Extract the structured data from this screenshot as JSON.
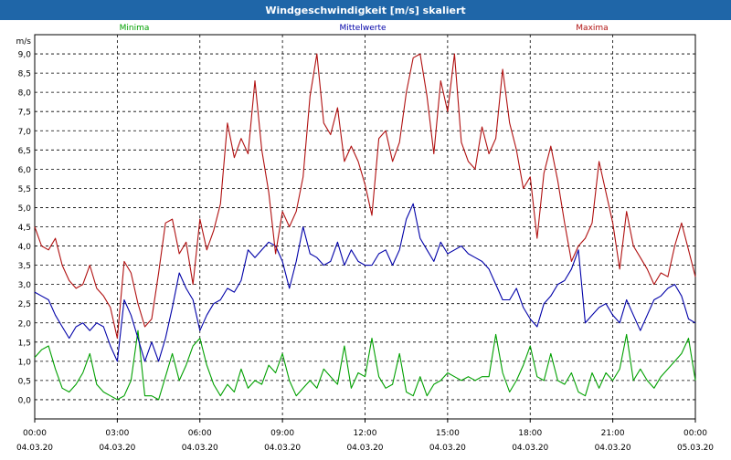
{
  "window": {
    "title": "Windgeschwindigkeit [m/s] skaliert"
  },
  "chart_data": {
    "type": "line",
    "title": "Windgeschwindigkeit [m/s] skaliert",
    "ylabel": "m/s",
    "ylim": [
      -0.5,
      9.5
    ],
    "xlim": [
      0,
      24
    ],
    "grid": true,
    "legend_placement": "top",
    "y_ticks": [
      "0,0",
      "0,5",
      "1,0",
      "1,5",
      "2,0",
      "2,5",
      "3,0",
      "3,5",
      "4,0",
      "4,5",
      "5,0",
      "5,5",
      "6,0",
      "6,5",
      "7,0",
      "7,5",
      "8,0",
      "8,5",
      "9,0"
    ],
    "x_ticks": [
      {
        "time": "00:00",
        "date": "04.03.20"
      },
      {
        "time": "03:00",
        "date": "04.03.20"
      },
      {
        "time": "06:00",
        "date": "04.03.20"
      },
      {
        "time": "09:00",
        "date": "04.03.20"
      },
      {
        "time": "12:00",
        "date": "04.03.20"
      },
      {
        "time": "15:00",
        "date": "04.03.20"
      },
      {
        "time": "18:00",
        "date": "04.03.20"
      },
      {
        "time": "21:00",
        "date": "04.03.20"
      },
      {
        "time": "00:00",
        "date": "05.03.20"
      }
    ],
    "series": [
      {
        "name": "Minima",
        "color": "#00a000",
        "points": [
          [
            0,
            1.1
          ],
          [
            0.25,
            1.3
          ],
          [
            0.5,
            1.4
          ],
          [
            0.75,
            0.8
          ],
          [
            1,
            0.3
          ],
          [
            1.25,
            0.2
          ],
          [
            1.5,
            0.4
          ],
          [
            1.75,
            0.7
          ],
          [
            2,
            1.2
          ],
          [
            2.25,
            0.4
          ],
          [
            2.5,
            0.2
          ],
          [
            2.75,
            0.1
          ],
          [
            3,
            0.0
          ],
          [
            3.25,
            0.1
          ],
          [
            3.5,
            0.5
          ],
          [
            3.75,
            1.8
          ],
          [
            4,
            0.1
          ],
          [
            4.25,
            0.1
          ],
          [
            4.5,
            0.0
          ],
          [
            4.75,
            0.6
          ],
          [
            5,
            1.2
          ],
          [
            5.25,
            0.5
          ],
          [
            5.5,
            0.9
          ],
          [
            5.75,
            1.4
          ],
          [
            6,
            1.6
          ],
          [
            6.25,
            0.9
          ],
          [
            6.5,
            0.4
          ],
          [
            6.75,
            0.1
          ],
          [
            7,
            0.4
          ],
          [
            7.25,
            0.2
          ],
          [
            7.5,
            0.8
          ],
          [
            7.75,
            0.3
          ],
          [
            8,
            0.5
          ],
          [
            8.25,
            0.4
          ],
          [
            8.5,
            0.9
          ],
          [
            8.75,
            0.7
          ],
          [
            9,
            1.2
          ],
          [
            9.25,
            0.5
          ],
          [
            9.5,
            0.1
          ],
          [
            9.75,
            0.3
          ],
          [
            10,
            0.5
          ],
          [
            10.25,
            0.3
          ],
          [
            10.5,
            0.8
          ],
          [
            10.75,
            0.6
          ],
          [
            11,
            0.4
          ],
          [
            11.25,
            1.4
          ],
          [
            11.5,
            0.3
          ],
          [
            11.75,
            0.7
          ],
          [
            12,
            0.6
          ],
          [
            12.25,
            1.6
          ],
          [
            12.5,
            0.6
          ],
          [
            12.75,
            0.3
          ],
          [
            13,
            0.4
          ],
          [
            13.25,
            1.2
          ],
          [
            13.5,
            0.2
          ],
          [
            13.75,
            0.1
          ],
          [
            14,
            0.6
          ],
          [
            14.25,
            0.1
          ],
          [
            14.5,
            0.4
          ],
          [
            14.75,
            0.5
          ],
          [
            15,
            0.7
          ],
          [
            15.25,
            0.6
          ],
          [
            15.5,
            0.5
          ],
          [
            15.75,
            0.6
          ],
          [
            16,
            0.5
          ],
          [
            16.25,
            0.6
          ],
          [
            16.5,
            0.6
          ],
          [
            16.75,
            1.7
          ],
          [
            17,
            0.7
          ],
          [
            17.25,
            0.2
          ],
          [
            17.5,
            0.5
          ],
          [
            17.75,
            0.9
          ],
          [
            18,
            1.4
          ],
          [
            18.25,
            0.6
          ],
          [
            18.5,
            0.5
          ],
          [
            18.75,
            1.2
          ],
          [
            19,
            0.5
          ],
          [
            19.25,
            0.4
          ],
          [
            19.5,
            0.7
          ],
          [
            19.75,
            0.2
          ],
          [
            20,
            0.1
          ],
          [
            20.25,
            0.7
          ],
          [
            20.5,
            0.3
          ],
          [
            20.75,
            0.7
          ],
          [
            21,
            0.5
          ],
          [
            21.25,
            0.8
          ],
          [
            21.5,
            1.7
          ],
          [
            21.75,
            0.5
          ],
          [
            22,
            0.8
          ],
          [
            22.25,
            0.5
          ],
          [
            22.5,
            0.3
          ],
          [
            22.75,
            0.6
          ],
          [
            23,
            0.8
          ],
          [
            23.25,
            1.0
          ],
          [
            23.5,
            1.2
          ],
          [
            23.75,
            1.6
          ],
          [
            24,
            0.5
          ]
        ]
      },
      {
        "name": "Mittelwerte",
        "color": "#0000a8",
        "points": [
          [
            0,
            2.8
          ],
          [
            0.25,
            2.7
          ],
          [
            0.5,
            2.6
          ],
          [
            0.75,
            2.2
          ],
          [
            1,
            1.9
          ],
          [
            1.25,
            1.6
          ],
          [
            1.5,
            1.9
          ],
          [
            1.75,
            2.0
          ],
          [
            2,
            1.8
          ],
          [
            2.25,
            2.0
          ],
          [
            2.5,
            1.9
          ],
          [
            2.75,
            1.4
          ],
          [
            3,
            1.0
          ],
          [
            3.25,
            2.6
          ],
          [
            3.5,
            2.2
          ],
          [
            3.75,
            1.6
          ],
          [
            4,
            1.0
          ],
          [
            4.25,
            1.5
          ],
          [
            4.5,
            1.0
          ],
          [
            4.75,
            1.6
          ],
          [
            5,
            2.4
          ],
          [
            5.25,
            3.3
          ],
          [
            5.5,
            2.9
          ],
          [
            5.75,
            2.6
          ],
          [
            6,
            1.8
          ],
          [
            6.25,
            2.2
          ],
          [
            6.5,
            2.5
          ],
          [
            6.75,
            2.6
          ],
          [
            7,
            2.9
          ],
          [
            7.25,
            2.8
          ],
          [
            7.5,
            3.1
          ],
          [
            7.75,
            3.9
          ],
          [
            8,
            3.7
          ],
          [
            8.25,
            3.9
          ],
          [
            8.5,
            4.1
          ],
          [
            8.75,
            4.0
          ],
          [
            9,
            3.6
          ],
          [
            9.25,
            2.9
          ],
          [
            9.5,
            3.6
          ],
          [
            9.75,
            4.5
          ],
          [
            10,
            3.8
          ],
          [
            10.25,
            3.7
          ],
          [
            10.5,
            3.5
          ],
          [
            10.75,
            3.6
          ],
          [
            11,
            4.1
          ],
          [
            11.25,
            3.5
          ],
          [
            11.5,
            3.9
          ],
          [
            11.75,
            3.6
          ],
          [
            12,
            3.5
          ],
          [
            12.25,
            3.5
          ],
          [
            12.5,
            3.8
          ],
          [
            12.75,
            3.9
          ],
          [
            13,
            3.5
          ],
          [
            13.25,
            3.9
          ],
          [
            13.5,
            4.7
          ],
          [
            13.75,
            5.1
          ],
          [
            14,
            4.2
          ],
          [
            14.25,
            3.9
          ],
          [
            14.5,
            3.6
          ],
          [
            14.75,
            4.1
          ],
          [
            15,
            3.8
          ],
          [
            15.25,
            3.9
          ],
          [
            15.5,
            4.0
          ],
          [
            15.75,
            3.8
          ],
          [
            16,
            3.7
          ],
          [
            16.25,
            3.6
          ],
          [
            16.5,
            3.4
          ],
          [
            16.75,
            3.0
          ],
          [
            17,
            2.6
          ],
          [
            17.25,
            2.6
          ],
          [
            17.5,
            2.9
          ],
          [
            17.75,
            2.4
          ],
          [
            18,
            2.1
          ],
          [
            18.25,
            1.9
          ],
          [
            18.5,
            2.5
          ],
          [
            18.75,
            2.7
          ],
          [
            19,
            3.0
          ],
          [
            19.25,
            3.1
          ],
          [
            19.5,
            3.4
          ],
          [
            19.75,
            3.9
          ],
          [
            20,
            2.0
          ],
          [
            20.25,
            2.2
          ],
          [
            20.5,
            2.4
          ],
          [
            20.75,
            2.5
          ],
          [
            21,
            2.2
          ],
          [
            21.25,
            2.0
          ],
          [
            21.5,
            2.6
          ],
          [
            21.75,
            2.2
          ],
          [
            22,
            1.8
          ],
          [
            22.25,
            2.2
          ],
          [
            22.5,
            2.6
          ],
          [
            22.75,
            2.7
          ],
          [
            23,
            2.9
          ],
          [
            23.25,
            3.0
          ],
          [
            23.5,
            2.7
          ],
          [
            23.75,
            2.1
          ],
          [
            24,
            2.0
          ]
        ]
      },
      {
        "name": "Maxima",
        "color": "#b01010",
        "points": [
          [
            0,
            4.5
          ],
          [
            0.25,
            4.0
          ],
          [
            0.5,
            3.9
          ],
          [
            0.75,
            4.2
          ],
          [
            1,
            3.5
          ],
          [
            1.25,
            3.1
          ],
          [
            1.5,
            2.9
          ],
          [
            1.75,
            3.0
          ],
          [
            2,
            3.5
          ],
          [
            2.25,
            2.9
          ],
          [
            2.5,
            2.7
          ],
          [
            2.75,
            2.4
          ],
          [
            3,
            1.6
          ],
          [
            3.25,
            3.6
          ],
          [
            3.5,
            3.3
          ],
          [
            3.75,
            2.5
          ],
          [
            4,
            1.9
          ],
          [
            4.25,
            2.1
          ],
          [
            4.5,
            3.3
          ],
          [
            4.75,
            4.6
          ],
          [
            5,
            4.7
          ],
          [
            5.25,
            3.8
          ],
          [
            5.5,
            4.1
          ],
          [
            5.75,
            3.0
          ],
          [
            6,
            4.7
          ],
          [
            6.25,
            3.9
          ],
          [
            6.5,
            4.4
          ],
          [
            6.75,
            5.1
          ],
          [
            7,
            7.2
          ],
          [
            7.25,
            6.3
          ],
          [
            7.5,
            6.8
          ],
          [
            7.75,
            6.4
          ],
          [
            8,
            8.3
          ],
          [
            8.25,
            6.5
          ],
          [
            8.5,
            5.4
          ],
          [
            8.75,
            3.8
          ],
          [
            9,
            4.9
          ],
          [
            9.25,
            4.5
          ],
          [
            9.5,
            4.9
          ],
          [
            9.75,
            5.8
          ],
          [
            10,
            7.9
          ],
          [
            10.25,
            9.0
          ],
          [
            10.5,
            7.2
          ],
          [
            10.75,
            6.9
          ],
          [
            11,
            7.6
          ],
          [
            11.25,
            6.2
          ],
          [
            11.5,
            6.6
          ],
          [
            11.75,
            6.2
          ],
          [
            12,
            5.6
          ],
          [
            12.25,
            4.8
          ],
          [
            12.5,
            6.8
          ],
          [
            12.75,
            7.0
          ],
          [
            13,
            6.2
          ],
          [
            13.25,
            6.7
          ],
          [
            13.5,
            8.0
          ],
          [
            13.75,
            8.9
          ],
          [
            14,
            9.0
          ],
          [
            14.25,
            7.9
          ],
          [
            14.5,
            6.4
          ],
          [
            14.75,
            8.3
          ],
          [
            15,
            7.5
          ],
          [
            15.25,
            9.0
          ],
          [
            15.5,
            6.7
          ],
          [
            15.75,
            6.2
          ],
          [
            16,
            6.0
          ],
          [
            16.25,
            7.1
          ],
          [
            16.5,
            6.4
          ],
          [
            16.75,
            6.8
          ],
          [
            17,
            8.6
          ],
          [
            17.25,
            7.2
          ],
          [
            17.5,
            6.5
          ],
          [
            17.75,
            5.5
          ],
          [
            18,
            5.8
          ],
          [
            18.25,
            4.2
          ],
          [
            18.5,
            5.9
          ],
          [
            18.75,
            6.6
          ],
          [
            19,
            5.7
          ],
          [
            19.25,
            4.6
          ],
          [
            19.5,
            3.6
          ],
          [
            19.75,
            4.0
          ],
          [
            20,
            4.2
          ],
          [
            20.25,
            4.6
          ],
          [
            20.5,
            6.2
          ],
          [
            20.75,
            5.4
          ],
          [
            21,
            4.6
          ],
          [
            21.25,
            3.4
          ],
          [
            21.5,
            4.9
          ],
          [
            21.75,
            4.0
          ],
          [
            22,
            3.7
          ],
          [
            22.25,
            3.4
          ],
          [
            22.5,
            3.0
          ],
          [
            22.75,
            3.3
          ],
          [
            23,
            3.2
          ],
          [
            23.25,
            4.0
          ],
          [
            23.5,
            4.6
          ],
          [
            23.75,
            3.9
          ],
          [
            24,
            3.2
          ]
        ]
      }
    ]
  }
}
